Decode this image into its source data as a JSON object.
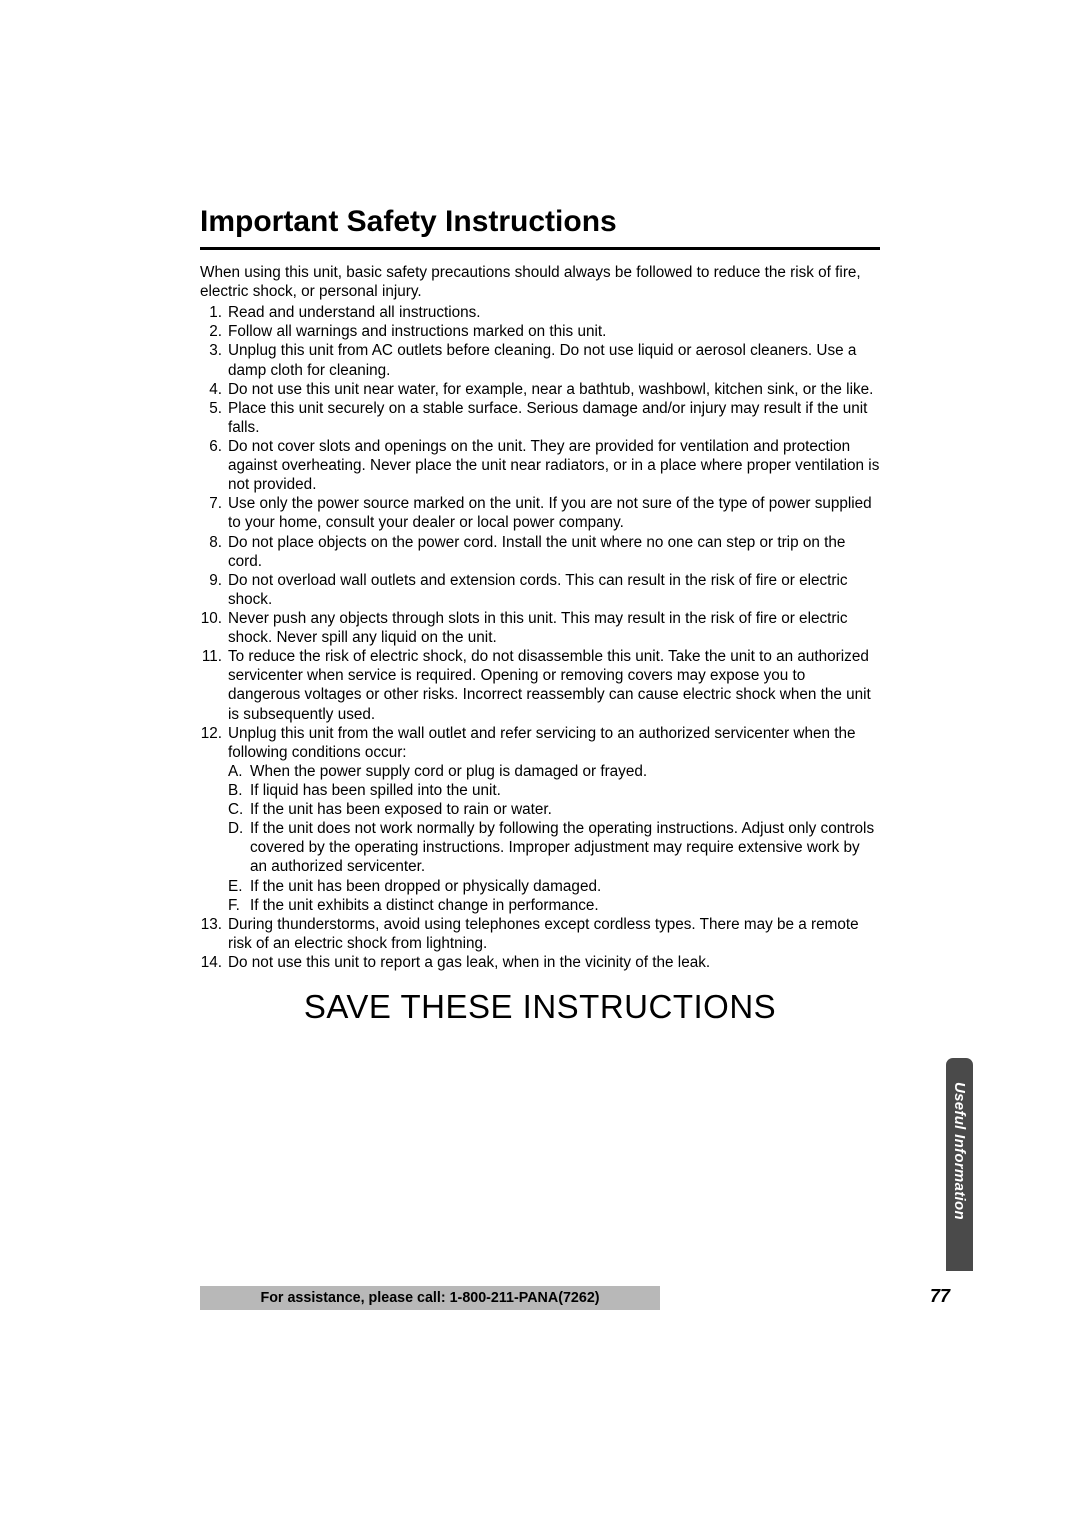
{
  "title": "Important Safety Instructions",
  "intro": "When using this unit, basic safety precautions should always be followed to reduce the risk of fire, electric shock, or personal injury.",
  "items": [
    "Read and understand all instructions.",
    "Follow all warnings and instructions marked on this unit.",
    "Unplug this unit from AC outlets before cleaning. Do not use liquid or aerosol cleaners. Use a damp cloth for cleaning.",
    "Do not use this unit near water, for example, near a bathtub, washbowl, kitchen sink, or the like.",
    "Place this unit securely on a stable surface. Serious damage and/or injury may result if the unit falls.",
    "Do not cover slots and openings on the unit. They are provided for ventilation and protection against overheating. Never place the unit near radiators, or in a place where proper ventilation is not provided.",
    "Use only the power source marked on the unit. If you are not sure of the type of power supplied to your home, consult your dealer or local power company.",
    "Do not place objects on the power cord. Install the unit where no one can step or trip on the cord.",
    "Do not overload wall outlets and extension cords. This can result in the risk of fire or electric shock.",
    "Never push any objects through slots in this unit. This may result in the risk of fire or electric shock. Never spill any liquid on the unit.",
    "To reduce the risk of electric shock, do not disassemble this unit. Take the unit to an authorized servicenter when service is required. Opening or removing covers may expose you to dangerous voltages or other risks. Incorrect reassembly can cause electric shock when the unit is subsequently used.",
    "Unplug this unit from the wall outlet and refer servicing to an authorized servicenter when the following conditions occur:",
    "During thunderstorms, avoid using telephones except cordless types. There may be a remote risk of an electric shock from lightning.",
    "Do not use this unit to report a gas leak, when in the vicinity of the leak."
  ],
  "subitems": [
    "When the power supply cord or plug is damaged or frayed.",
    "If liquid has been spilled into the unit.",
    "If the unit has been exposed to rain or water.",
    "If the unit does not work normally by following the operating instructions. Adjust only controls covered by the operating instructions. Improper adjustment may require extensive work by an authorized servicenter.",
    "If the unit has been dropped or physically damaged.",
    "If the unit exhibits a distinct change in performance."
  ],
  "subletters": [
    "A.",
    "B.",
    "C.",
    "D.",
    "E.",
    "F."
  ],
  "save_banner": "SAVE THESE INSTRUCTIONS",
  "side_tab": "Useful Information",
  "footer_text": "For assistance, please call: 1-800-211-PANA(7262)",
  "page_num": "77"
}
